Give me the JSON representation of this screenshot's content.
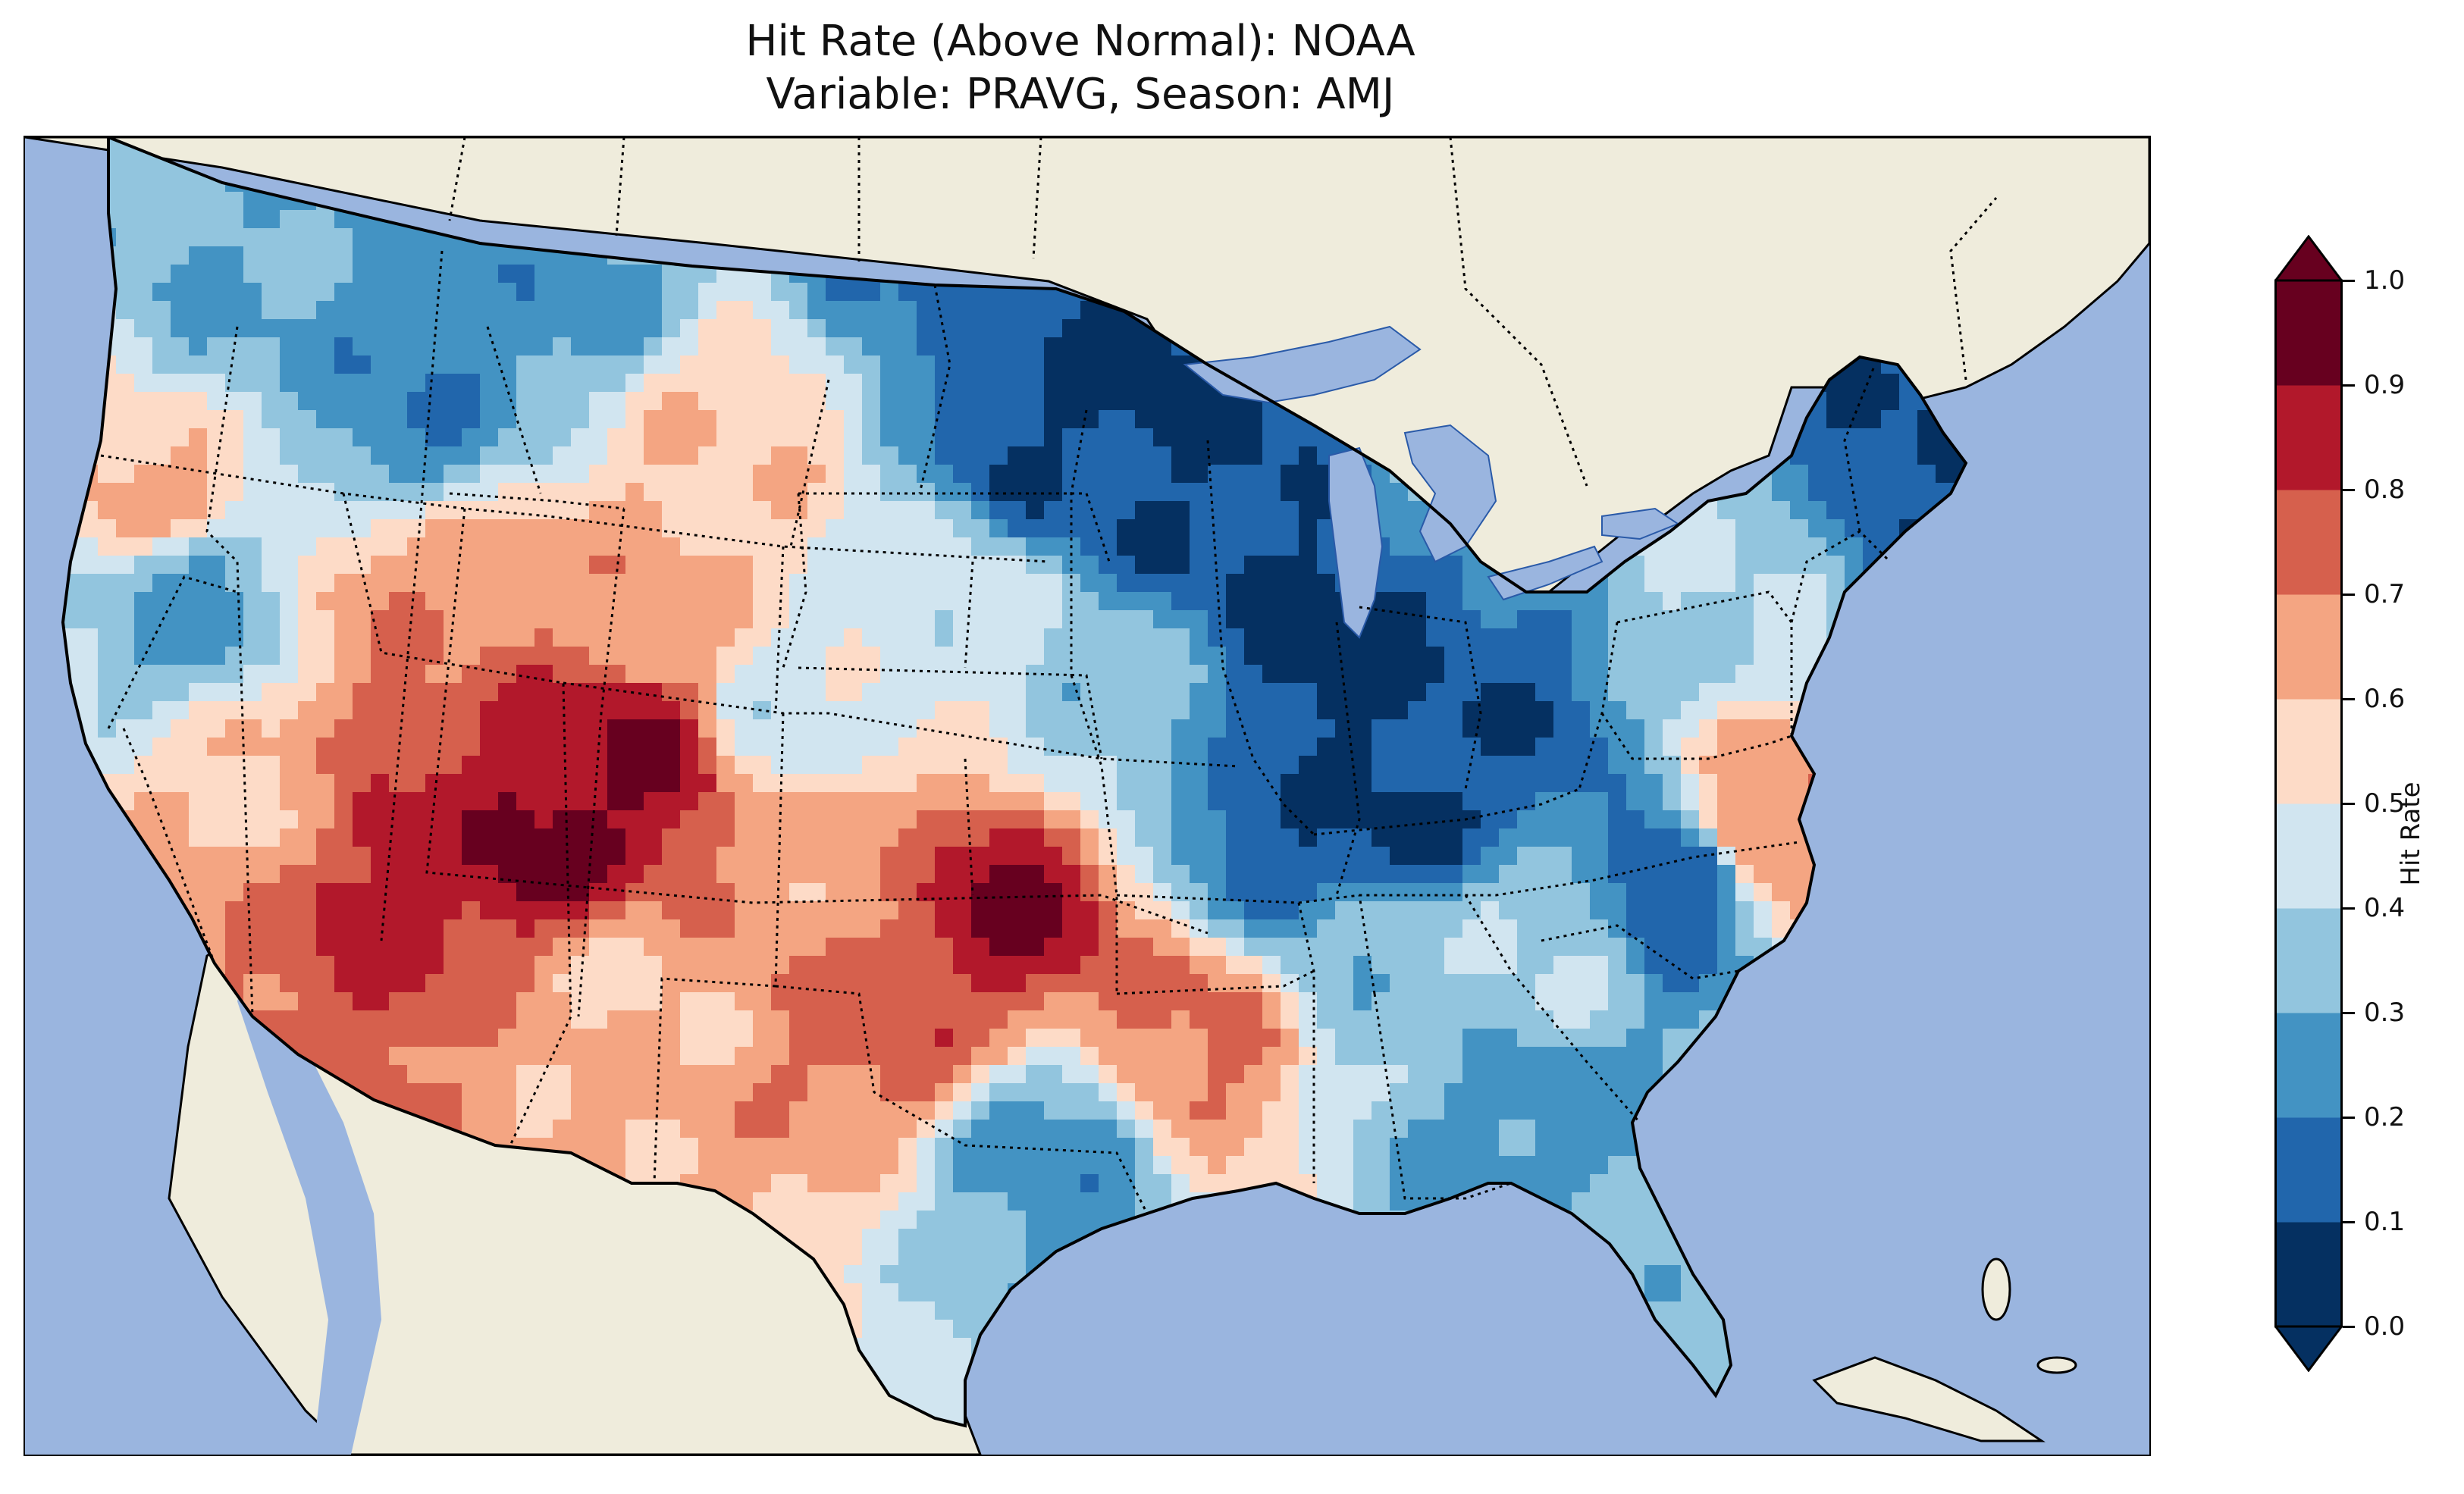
{
  "title": {
    "line1": "Hit Rate (Above Normal): NOAA",
    "line2": "Variable: PRAVG, Season: AMJ"
  },
  "map": {
    "region": "Contiguous United States",
    "ocean_color": "#9ab5df",
    "land_color": "#efecdc",
    "coastline_color": "#000000",
    "border_style": "dotted"
  },
  "colorbar": {
    "label": "Hit Rate",
    "min": 0.0,
    "max": 1.0,
    "extend": "both",
    "ticks": [
      "0.0",
      "0.1",
      "0.2",
      "0.3",
      "0.4",
      "0.5",
      "0.6",
      "0.7",
      "0.8",
      "0.9",
      "1.0"
    ],
    "colors": [
      "#053061",
      "#2166ac",
      "#4393c3",
      "#92c5de",
      "#d1e5f0",
      "#fddbc7",
      "#f4a582",
      "#d6604d",
      "#b2182b",
      "#67001f"
    ]
  },
  "hotspots": [
    {
      "lon": -112.5,
      "lat": 35.5,
      "value": 0.93
    },
    {
      "lon": -109.5,
      "lat": 37.0,
      "value": 0.9
    },
    {
      "lon": -115.5,
      "lat": 37.0,
      "value": 0.8
    },
    {
      "lon": -117.5,
      "lat": 34.8,
      "value": 0.85
    },
    {
      "lon": -116.0,
      "lat": 40.0,
      "value": 0.68
    },
    {
      "lon": -109.0,
      "lat": 40.5,
      "value": 0.65
    },
    {
      "lon": -98.5,
      "lat": 33.8,
      "value": 0.9
    },
    {
      "lon": -101.5,
      "lat": 31.5,
      "value": 0.75
    },
    {
      "lon": -103.5,
      "lat": 35.0,
      "value": 0.65
    },
    {
      "lon": -93.0,
      "lat": 31.0,
      "value": 0.72
    },
    {
      "lon": -110.0,
      "lat": 31.8,
      "value": 0.6
    },
    {
      "lon": -120.5,
      "lat": 36.0,
      "value": 0.6
    },
    {
      "lon": -124.0,
      "lat": 43.0,
      "value": 0.62
    },
    {
      "lon": -106.5,
      "lat": 44.0,
      "value": 0.58
    },
    {
      "lon": -75.8,
      "lat": 35.5,
      "value": 0.72
    },
    {
      "lon": -93.5,
      "lat": 46.0,
      "value": 0.05
    },
    {
      "lon": -97.0,
      "lat": 44.0,
      "value": 0.1
    },
    {
      "lon": -92.0,
      "lat": 42.5,
      "value": 0.1
    },
    {
      "lon": -88.5,
      "lat": 39.5,
      "value": 0.05
    },
    {
      "lon": -86.5,
      "lat": 36.0,
      "value": 0.08
    },
    {
      "lon": -90.0,
      "lat": 35.5,
      "value": 0.12
    },
    {
      "lon": -84.0,
      "lat": 37.5,
      "value": 0.12
    },
    {
      "lon": -78.0,
      "lat": 34.5,
      "value": 0.12
    },
    {
      "lon": -71.5,
      "lat": 44.0,
      "value": 0.1
    },
    {
      "lon": -69.0,
      "lat": 46.0,
      "value": 0.2
    },
    {
      "lon": -101.0,
      "lat": 47.5,
      "value": 0.2
    },
    {
      "lon": -112.0,
      "lat": 47.5,
      "value": 0.25
    },
    {
      "lon": -116.5,
      "lat": 45.0,
      "value": 0.22
    },
    {
      "lon": -123.0,
      "lat": 40.5,
      "value": 0.28
    },
    {
      "lon": -82.0,
      "lat": 29.0,
      "value": 0.25
    },
    {
      "lon": -81.0,
      "lat": 26.5,
      "value": 0.35
    },
    {
      "lon": -97.0,
      "lat": 28.5,
      "value": 0.25
    },
    {
      "lon": -86.5,
      "lat": 32.5,
      "value": 0.35
    },
    {
      "lon": -82.5,
      "lat": 33.0,
      "value": 0.4
    },
    {
      "lon": -105.0,
      "lat": 38.0,
      "value": 0.45
    },
    {
      "lon": -95.0,
      "lat": 38.0,
      "value": 0.35
    },
    {
      "lon": -84.5,
      "lat": 43.5,
      "value": 0.3
    },
    {
      "lon": -77.0,
      "lat": 41.5,
      "value": 0.4
    },
    {
      "lon": -100.0,
      "lat": 40.0,
      "value": 0.45
    },
    {
      "lon": -121.5,
      "lat": 46.8,
      "value": 0.3
    }
  ]
}
